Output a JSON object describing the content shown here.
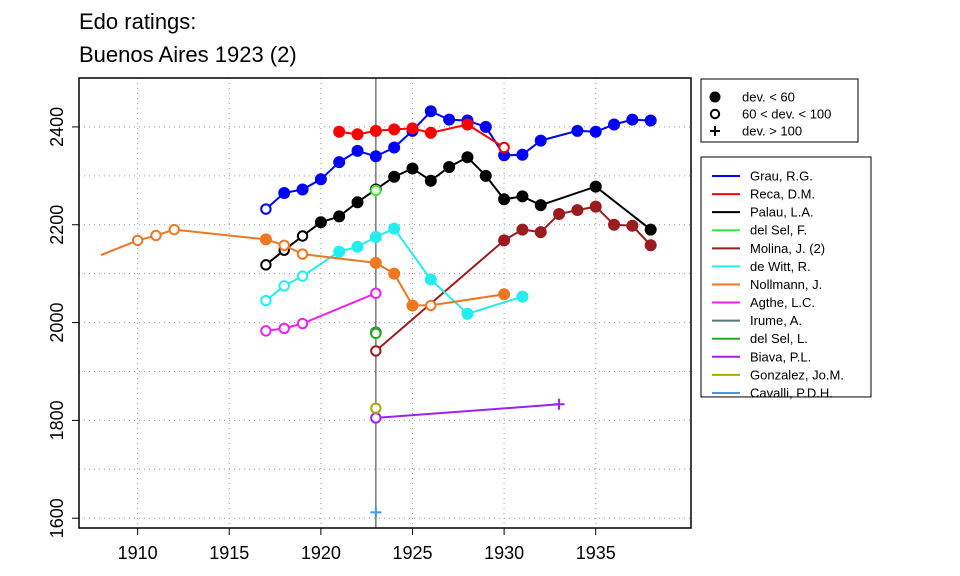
{
  "chart_data": {
    "type": "line",
    "title": [
      "Edo ratings:",
      "Buenos Aires 1923 (2)"
    ],
    "xlim": [
      1906.8,
      1940.2
    ],
    "ylim": [
      1580,
      2500
    ],
    "x_ticks": [
      1910,
      1915,
      1920,
      1925,
      1930,
      1935
    ],
    "y_ticks": [
      1600,
      1800,
      2000,
      2200,
      2400
    ],
    "grid": true,
    "vline_x": 1923,
    "marker_legend": [
      {
        "label": "dev. < 60",
        "marker": "filled"
      },
      {
        "label": "60 < dev. < 100",
        "marker": "open"
      },
      {
        "label": "dev. > 100",
        "marker": "plus"
      }
    ],
    "series": [
      {
        "name": "Grau, R.G.",
        "color": "#0000ff",
        "points": [
          [
            1917,
            2232,
            "open"
          ],
          [
            1918,
            2265,
            "filled"
          ],
          [
            1919,
            2272,
            "filled"
          ],
          [
            1920,
            2293,
            "filled"
          ],
          [
            1921,
            2328,
            "filled"
          ],
          [
            1922,
            2351,
            "filled"
          ],
          [
            1923,
            2340,
            "filled"
          ],
          [
            1924,
            2358,
            "filled"
          ],
          [
            1925,
            2392,
            "filled"
          ],
          [
            1926,
            2432,
            "filled"
          ],
          [
            1927,
            2415,
            "filled"
          ],
          [
            1928,
            2413,
            "filled"
          ],
          [
            1929,
            2400,
            "filled"
          ],
          [
            1930,
            2342,
            "filled"
          ],
          [
            1931,
            2343,
            "filled"
          ],
          [
            1932,
            2372,
            "filled"
          ],
          [
            1934,
            2392,
            "filled"
          ],
          [
            1935,
            2390,
            "filled"
          ],
          [
            1936,
            2405,
            "filled"
          ],
          [
            1937,
            2415,
            "filled"
          ],
          [
            1938,
            2413,
            "filled"
          ]
        ]
      },
      {
        "name": "Reca, D.M.",
        "color": "#ff0000",
        "points": [
          [
            1921,
            2390,
            "filled"
          ],
          [
            1922,
            2385,
            "filled"
          ],
          [
            1923,
            2392,
            "filled"
          ],
          [
            1924,
            2395,
            "filled"
          ],
          [
            1925,
            2397,
            "filled"
          ],
          [
            1926,
            2388,
            "filled"
          ],
          [
            1928,
            2405,
            "filled"
          ],
          [
            1930,
            2358,
            "open"
          ]
        ]
      },
      {
        "name": "Palau, L.A.",
        "color": "#000000",
        "points": [
          [
            1917,
            2118,
            "open"
          ],
          [
            1918,
            2148,
            "open"
          ],
          [
            1919,
            2177,
            "open"
          ],
          [
            1920,
            2205,
            "filled"
          ],
          [
            1921,
            2217,
            "filled"
          ],
          [
            1922,
            2246,
            "filled"
          ],
          [
            1923,
            2272,
            "filled"
          ],
          [
            1924,
            2298,
            "filled"
          ],
          [
            1925,
            2315,
            "filled"
          ],
          [
            1926,
            2290,
            "filled"
          ],
          [
            1927,
            2318,
            "filled"
          ],
          [
            1928,
            2338,
            "filled"
          ],
          [
            1929,
            2300,
            "filled"
          ],
          [
            1930,
            2252,
            "filled"
          ],
          [
            1931,
            2258,
            "filled"
          ],
          [
            1932,
            2240,
            "filled"
          ],
          [
            1935,
            2278,
            "filled"
          ],
          [
            1938,
            2190,
            "filled"
          ]
        ]
      },
      {
        "name": "del Sel, F.",
        "color": "#33ee33",
        "points": [
          [
            1923,
            2270,
            "open"
          ]
        ]
      },
      {
        "name": "Molina, J. (2)",
        "color": "#9b1b20",
        "points": [
          [
            1923,
            1942,
            "open"
          ],
          [
            1930,
            2168,
            "filled"
          ],
          [
            1931,
            2190,
            "filled"
          ],
          [
            1932,
            2185,
            "filled"
          ],
          [
            1933,
            2222,
            "filled"
          ],
          [
            1934,
            2230,
            "filled"
          ],
          [
            1935,
            2237,
            "filled"
          ],
          [
            1936,
            2200,
            "filled"
          ],
          [
            1937,
            2198,
            "filled"
          ],
          [
            1938,
            2158,
            "filled"
          ]
        ]
      },
      {
        "name": "de Witt, R.",
        "color": "#22eeee",
        "points": [
          [
            1917,
            2045,
            "open"
          ],
          [
            1918,
            2075,
            "open"
          ],
          [
            1919,
            2095,
            "open"
          ],
          [
            1921,
            2145,
            "filled"
          ],
          [
            1922,
            2155,
            "filled"
          ],
          [
            1923,
            2175,
            "filled"
          ],
          [
            1924,
            2192,
            "filled"
          ],
          [
            1926,
            2088,
            "filled"
          ],
          [
            1928,
            2018,
            "filled"
          ],
          [
            1931,
            2053,
            "filled"
          ]
        ]
      },
      {
        "name": "Nollmann, J.",
        "color": "#ee7722",
        "points": [
          [
            1908,
            2138,
            "none"
          ],
          [
            1910,
            2168,
            "open"
          ],
          [
            1911,
            2178,
            "open"
          ],
          [
            1912,
            2190,
            "open"
          ],
          [
            1917,
            2170,
            "filled"
          ],
          [
            1918,
            2158,
            "open"
          ],
          [
            1919,
            2140,
            "open"
          ],
          [
            1923,
            2122,
            "filled"
          ],
          [
            1924,
            2100,
            "filled"
          ],
          [
            1925,
            2035,
            "filled"
          ],
          [
            1926,
            2035,
            "open"
          ],
          [
            1930,
            2058,
            "filled"
          ]
        ]
      },
      {
        "name": "Agthe, L.C.",
        "color": "#ee22ee",
        "points": [
          [
            1917,
            1983,
            "open"
          ],
          [
            1918,
            1988,
            "open"
          ],
          [
            1919,
            1998,
            "open"
          ],
          [
            1923,
            2060,
            "open"
          ]
        ]
      },
      {
        "name": "Irume, A.",
        "color": "#557777",
        "points": [
          [
            1923,
            1980,
            "filled"
          ]
        ]
      },
      {
        "name": "del Sel, L.",
        "color": "#22aa22",
        "points": [
          [
            1923,
            1978,
            "open"
          ]
        ]
      },
      {
        "name": "Biava, P.L.",
        "color": "#a020f0",
        "points": [
          [
            1923,
            1805,
            "open"
          ],
          [
            1933,
            1833,
            "plus"
          ]
        ]
      },
      {
        "name": "Gonzalez, Jo.M.",
        "color": "#aaaa00",
        "points": [
          [
            1923,
            1825,
            "open"
          ]
        ]
      },
      {
        "name": "Cavalli, P.D.H.",
        "color": "#4499ee",
        "points": [
          [
            1923,
            1612,
            "plus"
          ]
        ]
      }
    ]
  }
}
